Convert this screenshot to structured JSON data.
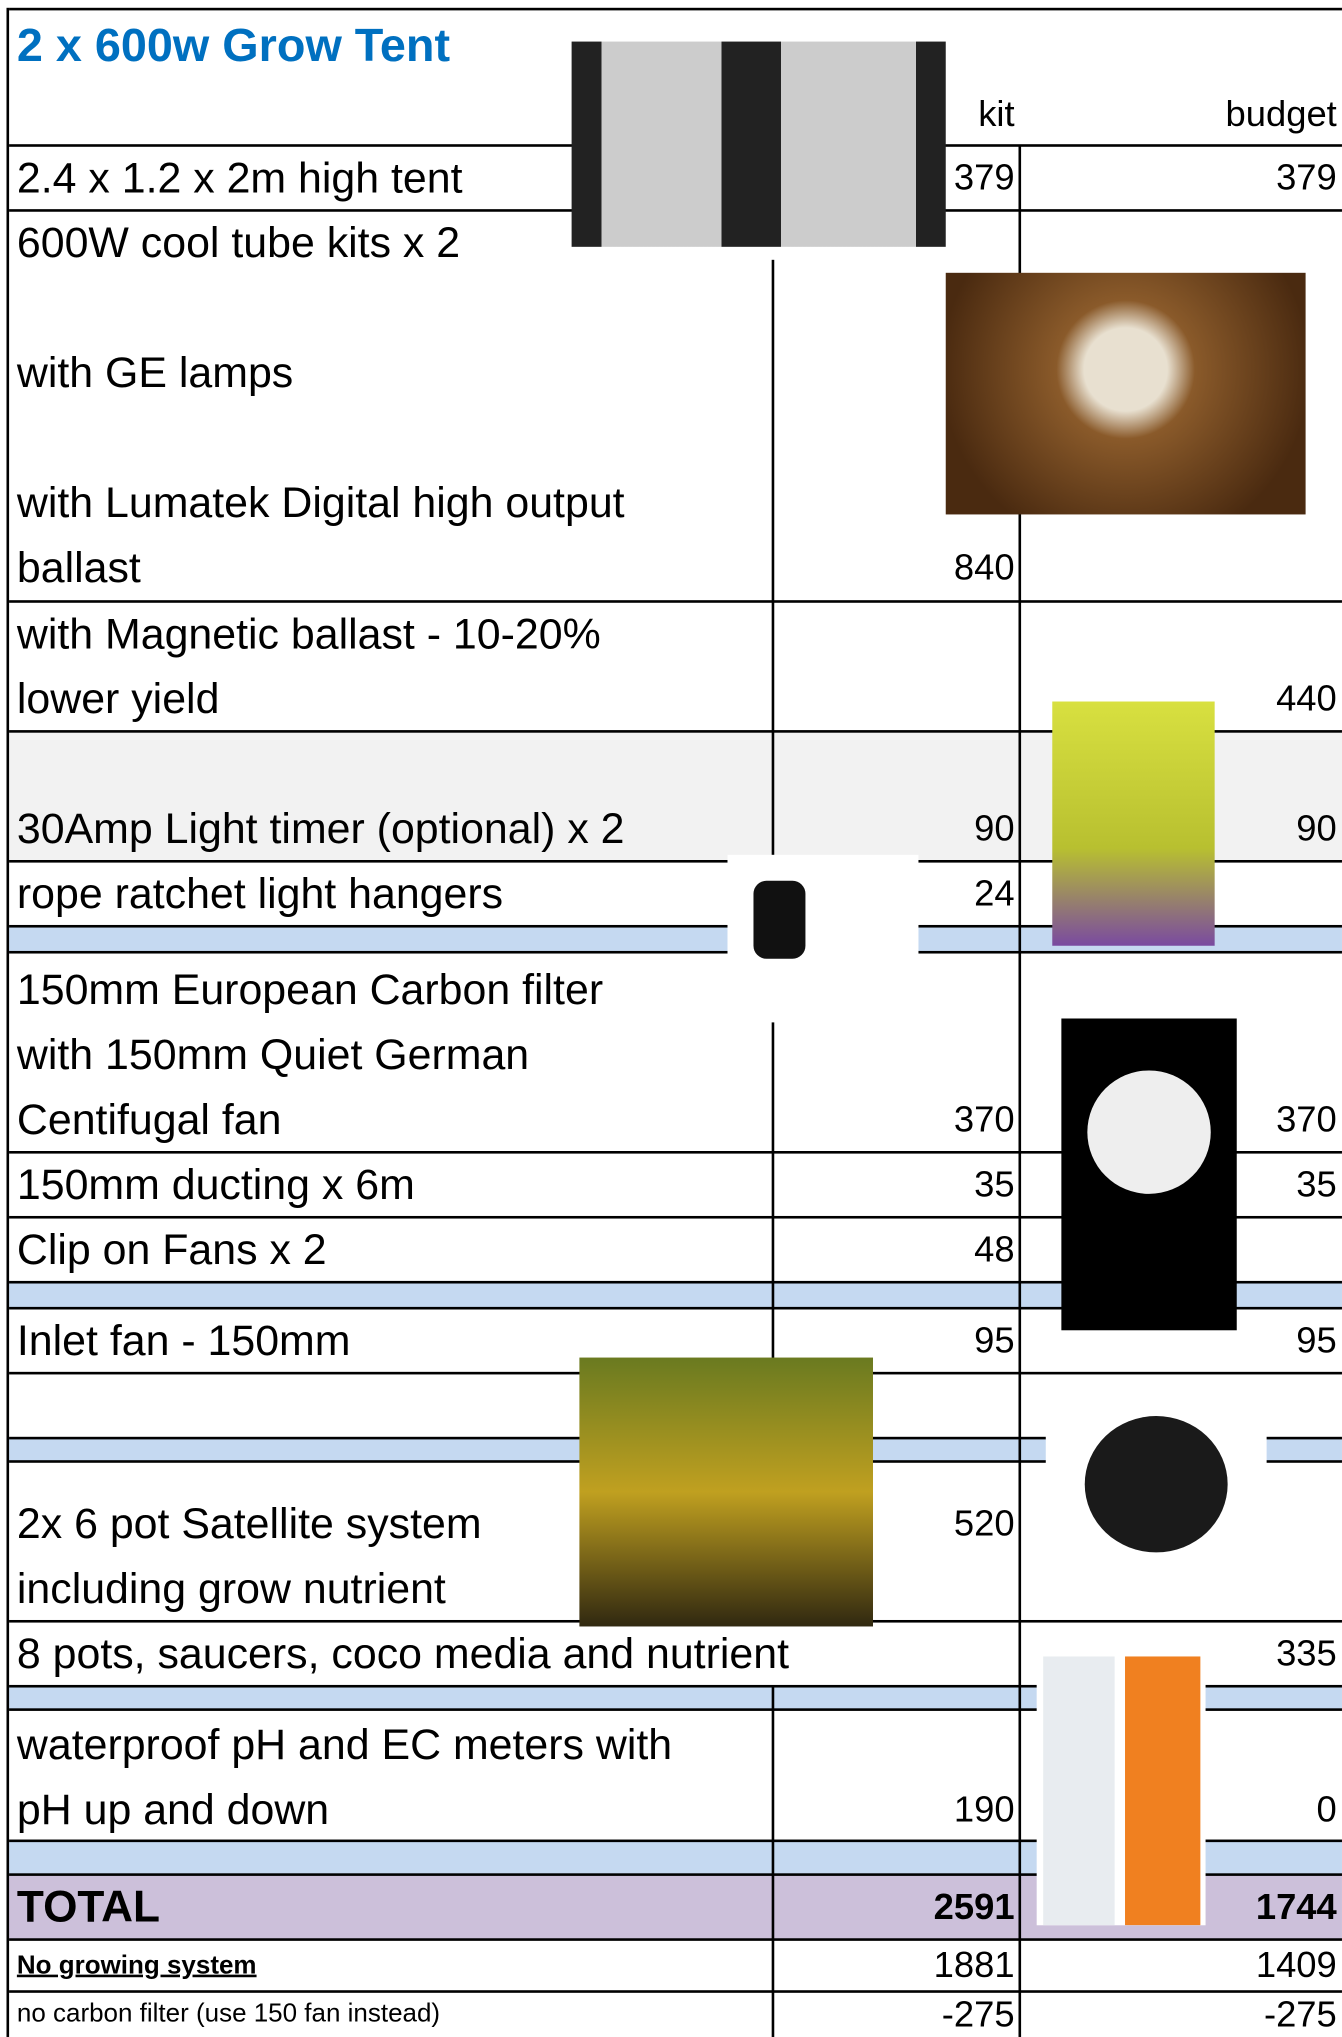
{
  "header": {
    "title": "2 x 600w Grow Tent",
    "columns": [
      "kit",
      "budget"
    ]
  },
  "rows": [
    {
      "lines": [
        "2.4 x 1.2 x 2m high tent"
      ],
      "kit": 379,
      "budget": 379
    },
    {
      "lines": [
        "600W cool tube kits x 2",
        "with GE lamps",
        "with Lumatek Digital high output",
        "ballast"
      ],
      "kit": 840
    },
    {
      "lines": [
        "with Magnetic ballast - 10-20%",
        "lower yield"
      ],
      "budget": 440
    },
    {
      "lines": [
        "30Amp Light timer (optional) x 2"
      ],
      "kit": 90,
      "budget": 90
    },
    {
      "lines": [
        "rope ratchet light hangers"
      ],
      "kit": 24
    },
    {
      "lines": [
        "150mm European Carbon filter",
        "with 150mm Quiet German",
        "Centifugal fan"
      ],
      "kit": 370,
      "budget": 370
    },
    {
      "lines": [
        "150mm ducting x 6m"
      ],
      "kit": 35,
      "budget": 35
    },
    {
      "lines": [
        "Clip on Fans x 2"
      ],
      "kit": 48
    },
    {
      "lines": [
        "Inlet fan - 150mm"
      ],
      "kit": 95,
      "budget": 95
    },
    {
      "lines": [
        "2x 6 pot Satellite system",
        "including  grow nutrient"
      ],
      "kit": 520
    },
    {
      "lines": [
        "8 pots, saucers, coco media and nutrient"
      ],
      "budget": 335
    },
    {
      "lines": [
        "waterproof pH and EC meters with",
        "pH up and down"
      ],
      "kit": 190,
      "budget": 0
    }
  ],
  "total": {
    "label": "TOTAL",
    "kit": 2591,
    "budget": 1744
  },
  "notes": [
    {
      "label": "No growing system",
      "kit": 1881,
      "budget": 1409
    },
    {
      "label": "no carbon filter (use 150 fan instead)",
      "kit": -275,
      "budget": -275
    }
  ]
}
